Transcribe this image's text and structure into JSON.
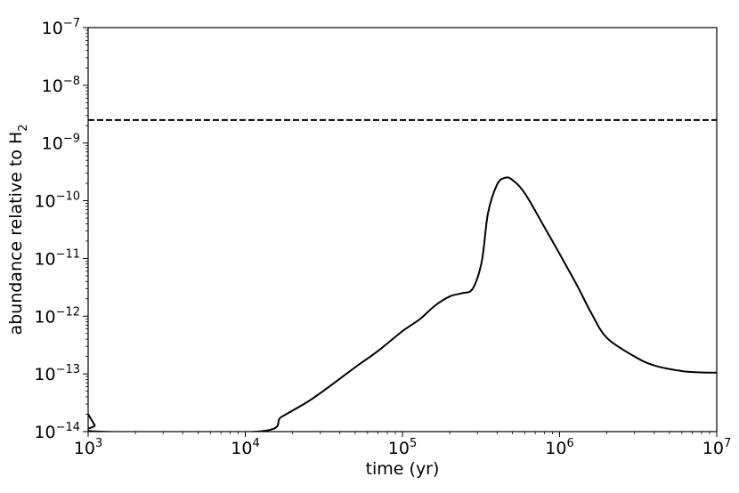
{
  "chart_data": {
    "type": "line",
    "title": "",
    "xlabel": "time (yr)",
    "ylabel": {
      "prefix": "abundance relative to H",
      "subscript": "2"
    },
    "x_scale": "log",
    "y_scale": "log",
    "xlim": [
      1000,
      10000000
    ],
    "ylim": [
      1e-14,
      1e-07
    ],
    "x_ticks": [
      {
        "value": 1000,
        "base": "10",
        "exp": "3"
      },
      {
        "value": 10000,
        "base": "10",
        "exp": "4"
      },
      {
        "value": 100000,
        "base": "10",
        "exp": "5"
      },
      {
        "value": 1000000,
        "base": "10",
        "exp": "6"
      },
      {
        "value": 10000000,
        "base": "10",
        "exp": "7"
      }
    ],
    "y_ticks": [
      {
        "value": 1e-14,
        "base": "10",
        "exp": "−14"
      },
      {
        "value": 1e-13,
        "base": "10",
        "exp": "−13"
      },
      {
        "value": 1e-12,
        "base": "10",
        "exp": "−12"
      },
      {
        "value": 1e-11,
        "base": "10",
        "exp": "−11"
      },
      {
        "value": 1e-10,
        "base": "10",
        "exp": "−10"
      },
      {
        "value": 1e-09,
        "base": "10",
        "exp": "−9"
      },
      {
        "value": 1e-08,
        "base": "10",
        "exp": "−8"
      },
      {
        "value": 1e-07,
        "base": "10",
        "exp": "−7"
      }
    ],
    "grid": false,
    "series": [
      {
        "style": "solid",
        "color": "#000000",
        "x": [
          1000,
          1100,
          1180,
          12000,
          17000,
          25000,
          35000,
          50000,
          70000,
          100000,
          130000,
          160000,
          200000,
          240000,
          280000,
          320000,
          350000,
          400000,
          450000,
          500000,
          600000,
          800000,
          1000000,
          1300000,
          1600000,
          2000000,
          3000000,
          4000000,
          6000000,
          8000000,
          10000000
        ],
        "y": [
          2e-14,
          1.3e-14,
          1e-14,
          1e-14,
          1.8e-14,
          3.3e-14,
          6.3e-14,
          1.3e-13,
          2.5e-13,
          5.5e-13,
          9e-13,
          1.5e-12,
          2.2e-12,
          2.5e-12,
          3e-12,
          9e-12,
          6e-11,
          1.9e-10,
          2.5e-10,
          2.3e-10,
          1.35e-10,
          3.5e-11,
          1.2e-11,
          3.3e-12,
          1.1e-12,
          4.2e-13,
          2e-13,
          1.4e-13,
          1.12e-13,
          1.06e-13,
          1.05e-13
        ]
      },
      {
        "style": "dashed",
        "color": "#000000",
        "x": [
          1000,
          10000000
        ],
        "y": [
          2.5e-09,
          2.5e-09
        ]
      }
    ]
  }
}
